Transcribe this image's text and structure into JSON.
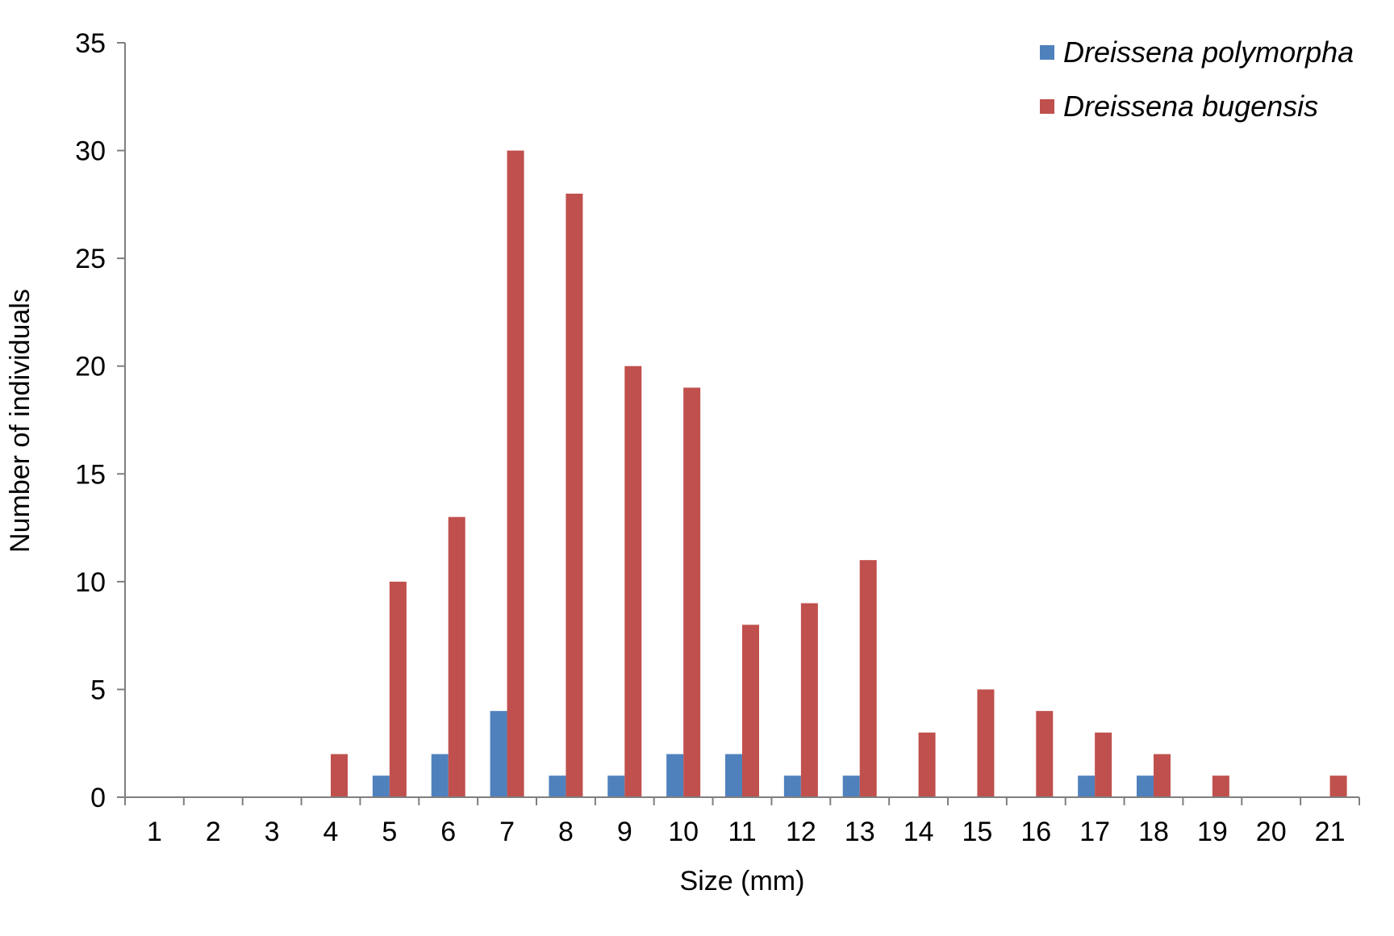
{
  "chart_data": {
    "type": "bar",
    "xlabel": "Size (mm)",
    "ylabel": "Number of individuals",
    "ylim": [
      0,
      35
    ],
    "ytick_step": 5,
    "grid": false,
    "legend_position": "top-right",
    "categories": [
      "1",
      "2",
      "3",
      "4",
      "5",
      "6",
      "7",
      "8",
      "9",
      "10",
      "11",
      "12",
      "13",
      "14",
      "15",
      "16",
      "17",
      "18",
      "19",
      "20",
      "21"
    ],
    "series": [
      {
        "name": "Dreissena polymorpha",
        "color": "#4f81bd",
        "values": [
          0,
          0,
          0,
          0,
          1,
          2,
          4,
          1,
          1,
          2,
          2,
          1,
          1,
          0,
          0,
          0,
          1,
          1,
          0,
          0,
          0
        ]
      },
      {
        "name": "Dreissena bugensis",
        "color": "#c0504d",
        "values": [
          0,
          0,
          0,
          2,
          10,
          13,
          30,
          28,
          20,
          19,
          8,
          9,
          11,
          3,
          5,
          4,
          3,
          2,
          1,
          0,
          1
        ]
      }
    ]
  }
}
